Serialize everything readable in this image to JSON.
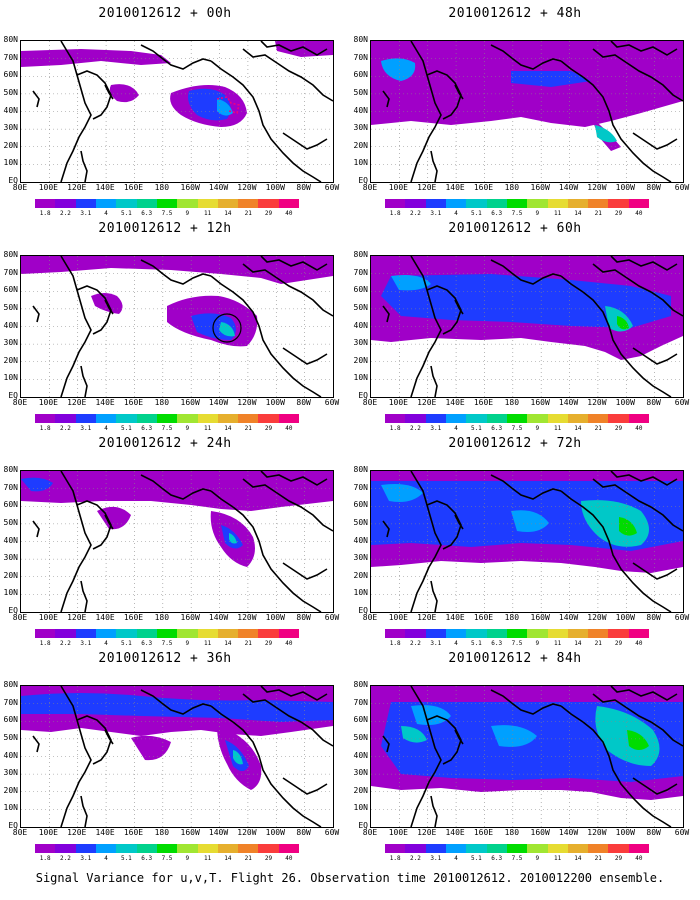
{
  "panels": [
    {
      "title": "2010012612 + 00h"
    },
    {
      "title": "2010012612 + 48h"
    },
    {
      "title": "2010012612 + 12h"
    },
    {
      "title": "2010012612 + 60h"
    },
    {
      "title": "2010012612 + 24h"
    },
    {
      "title": "2010012612 + 72h"
    },
    {
      "title": "2010012612 + 36h"
    },
    {
      "title": "2010012612 + 84h"
    }
  ],
  "lat_labels": [
    "80N",
    "70N",
    "60N",
    "50N",
    "40N",
    "30N",
    "20N",
    "10N",
    "EQ"
  ],
  "lon_labels": [
    "80E",
    "100E",
    "120E",
    "140E",
    "160E",
    "180",
    "160W",
    "140W",
    "120W",
    "100W",
    "80W",
    "60W"
  ],
  "colorbar": {
    "labels": [
      "1.8",
      "2.2",
      "3.1",
      "4",
      "5.1",
      "6.3",
      "7.5",
      "9",
      "11",
      "14",
      "21",
      "29",
      "40"
    ],
    "colors": [
      "#a000c8",
      "#8200dc",
      "#1e3cff",
      "#00a0ff",
      "#00c8c8",
      "#00d28c",
      "#00dc00",
      "#a0e632",
      "#e6dc32",
      "#e6af2d",
      "#f08228",
      "#fa3c3c",
      "#f00082"
    ]
  },
  "caption": "Signal Variance for u,v,T. Flight 26. Observation time 2010012612. 2010012200 ensemble.",
  "chart_data": {
    "type": "heatmap",
    "description_note": "",
    "panels": [
      "+00h",
      "+48h",
      "+12h",
      "+60h",
      "+24h",
      "+72h",
      "+36h",
      "+84h"
    ]
  }
}
